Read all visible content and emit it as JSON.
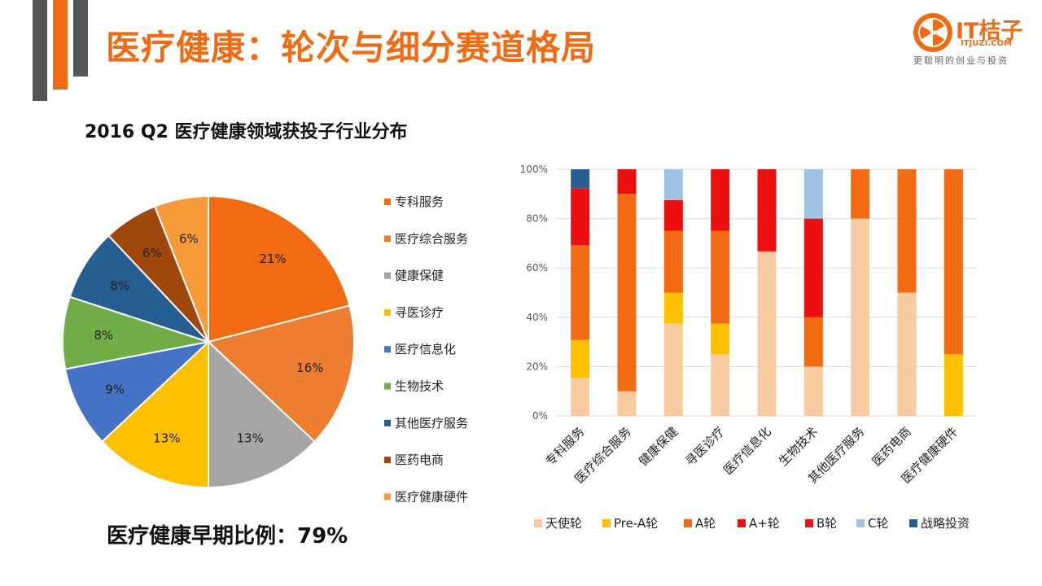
{
  "title": "医疗健康：轮次与细分赛道格局",
  "logo": {
    "name": "IT桔子",
    "domain": "ITJUZI.COM",
    "slogan": "更聪明的创业与投资",
    "brand_color": "#f26b12"
  },
  "footer_text": "医疗健康早期比例：79%",
  "chart_data": [
    {
      "type": "pie",
      "title": "2016 Q2 医疗健康领域获投子行业分布",
      "categories": [
        "专科服务",
        "医疗综合服务",
        "健康保健",
        "寻医诊疗",
        "医疗信息化",
        "生物技术",
        "其他医疗服务",
        "医药电商",
        "医疗健康硬件"
      ],
      "values": [
        21,
        16,
        13,
        13,
        9,
        8,
        8,
        6,
        6
      ],
      "labels": [
        "21%",
        "16%",
        "13%",
        "13%",
        "9%",
        "8%",
        "8%",
        "6%",
        "6%"
      ],
      "colors": [
        "#f26b12",
        "#ed7d31",
        "#a5a5a5",
        "#ffc000",
        "#4472c4",
        "#70ad47",
        "#255e91",
        "#9e480e",
        "#f79a3a"
      ],
      "legend_position": "right"
    },
    {
      "type": "stacked-bar",
      "categories": [
        "专科服务",
        "医疗综合服务",
        "健康保健",
        "寻医诊疗",
        "医疗信息化",
        "生物技术",
        "其他医疗服务",
        "医药电商",
        "医疗健康硬件"
      ],
      "ylim": [
        0,
        100
      ],
      "yticks": [
        "0%",
        "20%",
        "40%",
        "60%",
        "80%",
        "100%"
      ],
      "legend_position": "bottom",
      "series": [
        {
          "name": "天使轮",
          "color": "#f8cba0",
          "values": [
            15.4,
            10,
            37.5,
            25,
            66.7,
            20,
            80,
            50,
            0
          ]
        },
        {
          "name": "Pre-A轮",
          "color": "#ffc000",
          "values": [
            15.4,
            0,
            12.5,
            12.5,
            0,
            0,
            0,
            0,
            25
          ]
        },
        {
          "name": "A轮",
          "color": "#f26b12",
          "values": [
            38.4,
            80,
            25,
            37.5,
            0,
            20,
            20,
            50,
            75
          ]
        },
        {
          "name": "A+轮",
          "color": "#ec0f0f",
          "values": [
            23.1,
            10,
            12.5,
            25,
            33.3,
            40,
            0,
            0,
            0
          ]
        },
        {
          "name": "B轮",
          "color": "#e8141a",
          "values": [
            0,
            0,
            0,
            0,
            0,
            0,
            0,
            0,
            0
          ]
        },
        {
          "name": "C轮",
          "color": "#9fc3e4",
          "values": [
            0,
            0,
            12.5,
            0,
            0,
            20,
            0,
            0,
            0
          ]
        },
        {
          "name": "战略投资",
          "color": "#255e91",
          "values": [
            7.7,
            0,
            0,
            0,
            0,
            0,
            0,
            0,
            0
          ]
        }
      ]
    }
  ]
}
